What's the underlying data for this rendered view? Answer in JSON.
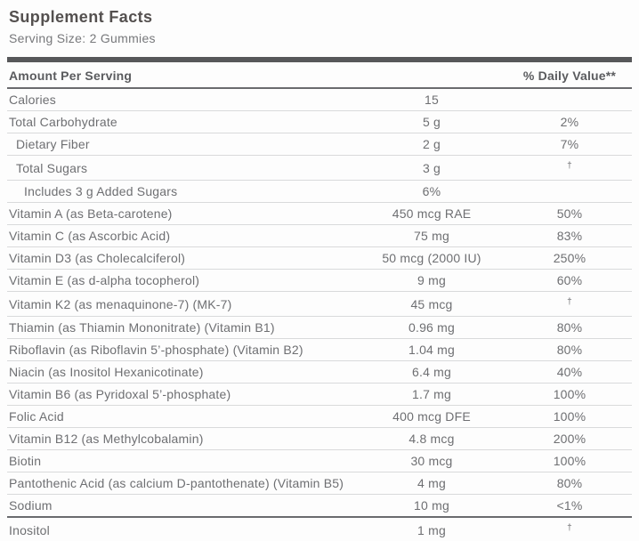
{
  "title": "Supplement Facts",
  "serving_size": "Serving Size: 2 Gummies",
  "table": {
    "amount_header": "Amount Per Serving",
    "dv_header": "% Daily Value**",
    "rows": [
      {
        "name": "Calories",
        "amount": "15",
        "dv": "",
        "indent": 0
      },
      {
        "name": "Total Carbohydrate",
        "amount": "5 g",
        "dv": "2%",
        "indent": 0
      },
      {
        "name": "Dietary Fiber",
        "amount": "2 g",
        "dv": "7%",
        "indent": 1
      },
      {
        "name": "Total Sugars",
        "amount": "3 g",
        "dv": "†",
        "indent": 1
      },
      {
        "name": "Includes 3 g Added Sugars",
        "amount": "6%",
        "dv": "",
        "indent": 2
      },
      {
        "name": "Vitamin A (as Beta-carotene)",
        "amount": "450 mcg RAE",
        "dv": "50%",
        "indent": 0
      },
      {
        "name": "Vitamin C (as Ascorbic Acid)",
        "amount": "75 mg",
        "dv": "83%",
        "indent": 0
      },
      {
        "name": "Vitamin D3 (as Cholecalciferol)",
        "amount": "50 mcg (2000 IU)",
        "dv": "250%",
        "indent": 0
      },
      {
        "name": "Vitamin E (as d-alpha tocopherol)",
        "amount": "9 mg",
        "dv": "60%",
        "indent": 0
      },
      {
        "name": "Vitamin K2 (as menaquinone-7) (MK-7)",
        "amount": "45 mcg",
        "dv": "†",
        "indent": 0
      },
      {
        "name": "Thiamin (as Thiamin Mononitrate) (Vitamin B1)",
        "amount": "0.96 mg",
        "dv": "80%",
        "indent": 0
      },
      {
        "name": "Riboflavin (as Riboflavin 5’-phosphate) (Vitamin B2)",
        "amount": "1.04 mg",
        "dv": "80%",
        "indent": 0
      },
      {
        "name": "Niacin (as Inositol Hexanicotinate)",
        "amount": "6.4 mg",
        "dv": "40%",
        "indent": 0
      },
      {
        "name": "Vitamin B6 (as Pyridoxal 5’-phosphate)",
        "amount": "1.7 mg",
        "dv": "100%",
        "indent": 0
      },
      {
        "name": "Folic Acid",
        "amount": "400 mcg DFE",
        "dv": "100%",
        "indent": 0
      },
      {
        "name": "Vitamin B12 (as Methylcobalamin)",
        "amount": "4.8 mcg",
        "dv": "200%",
        "indent": 0
      },
      {
        "name": "Biotin",
        "amount": "30 mcg",
        "dv": "100%",
        "indent": 0
      },
      {
        "name": "Pantothenic Acid (as calcium D-pantothenate) (Vitamin B5)",
        "amount": "4 mg",
        "dv": "80%",
        "indent": 0
      },
      {
        "name": "Sodium",
        "amount": "10 mg",
        "dv": "<1%",
        "indent": 0,
        "divider_after": "dark"
      },
      {
        "name": "Inositol",
        "amount": "1 mg",
        "dv": "†",
        "indent": 0
      }
    ]
  },
  "colors": {
    "title_text": "#54504f",
    "body_text": "#6e6f72",
    "bold_text": "#5a5b5e",
    "thick_bar": "#57585a",
    "row_separator": "#d9dadb",
    "background": "#fdfdfd"
  }
}
